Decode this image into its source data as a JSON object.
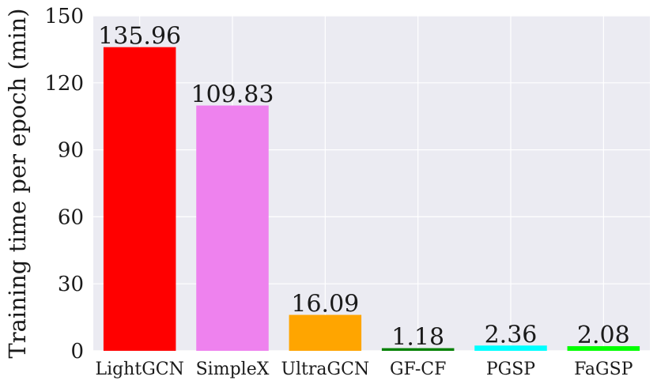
{
  "chart_data": {
    "type": "bar",
    "title": "",
    "xlabel": "",
    "ylabel": "Training time per epoch (min)",
    "ylim": [
      0,
      150
    ],
    "yticks": [
      0,
      30,
      60,
      90,
      120,
      150
    ],
    "grid": true,
    "categories": [
      "LightGCN",
      "SimpleX",
      "UltraGCN",
      "GF-CF",
      "PGSP",
      "FaGSP"
    ],
    "values": [
      135.96,
      109.83,
      16.09,
      1.18,
      2.36,
      2.08
    ],
    "value_labels": [
      "135.96",
      "109.83",
      "16.09",
      "1.18",
      "2.36",
      "2.08"
    ],
    "colors": [
      "#ff0000",
      "#ee82ee",
      "#ffa500",
      "#008000",
      "#00ffff",
      "#00ff00"
    ],
    "background": "#ebebf2",
    "grid_color": "#ffffff"
  }
}
